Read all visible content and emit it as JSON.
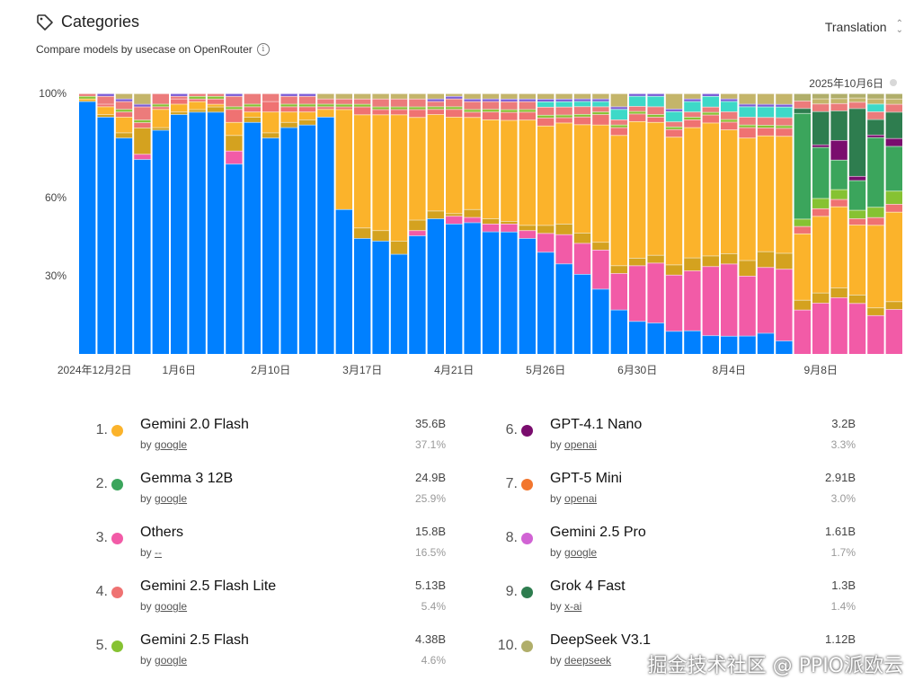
{
  "header": {
    "title": "Categories",
    "subtitle": "Compare models by usecase on OpenRouter",
    "icon": "tag-icon"
  },
  "selector": {
    "value": "Translation"
  },
  "current_date": "2025年10月6日",
  "chart_data": {
    "type": "bar",
    "stacked": true,
    "normalized": true,
    "y_ticks": [
      "100%",
      "60%",
      "30%"
    ],
    "y_tick_values": [
      100,
      60,
      30
    ],
    "x_tick_labels": [
      "2024年12月2日",
      "1月6日",
      "2月10日",
      "3月17日",
      "4月21日",
      "5月26日",
      "6月30日",
      "8月4日",
      "9月8日"
    ],
    "x_tick_bar_index": [
      0,
      5,
      10,
      15,
      20,
      25,
      30,
      35,
      40
    ],
    "bar_count": 45,
    "colors": {
      "gemini-2.0-flash": "#FBB32B",
      "gemma-3-12b": "#3BA55C",
      "others": "#F25BA7",
      "gemini-2.5-flash-lite": "#EF7272",
      "gemini-2.5-flash": "#86C232",
      "gpt-4.1-nano": "#7A0D6E",
      "gpt-5-mini": "#F2762E",
      "gemini-2.5-pro": "#D163D4",
      "grok-4-fast": "#2E7D4F",
      "deepseek-v3.1": "#B0AE6A",
      "blue": "#0080FF",
      "gold": "#D4A21F",
      "salmon": "#EC7B7B",
      "teal": "#3DD9C8",
      "khaki": "#C4B56A",
      "purple": "#7B5CD6"
    },
    "series": [
      {
        "key": "blue",
        "values": [
          97,
          91,
          83,
          74,
          86,
          92,
          92,
          92,
          73,
          89,
          83,
          87,
          88,
          91,
          55,
          44,
          43,
          38,
          45,
          52,
          50,
          50,
          47,
          46,
          44,
          38,
          34,
          31,
          25,
          17,
          13,
          12,
          9,
          9,
          7,
          7,
          7,
          8,
          5,
          0,
          0,
          0,
          0,
          0,
          0
        ]
      },
      {
        "key": "others",
        "values": [
          0,
          0,
          0,
          2,
          0,
          0,
          0,
          0,
          5,
          0,
          0,
          0,
          0,
          0,
          0,
          0,
          0,
          0,
          2,
          0,
          3,
          2,
          3,
          3,
          3,
          7,
          11,
          12,
          15,
          14,
          22,
          23,
          22,
          23,
          26,
          28,
          23,
          25,
          27,
          18,
          20,
          23,
          24,
          15,
          17
        ]
      },
      {
        "key": "gold",
        "values": [
          0,
          1,
          2,
          10,
          1,
          1,
          1,
          2,
          6,
          2,
          2,
          2,
          2,
          0,
          0,
          4,
          4,
          5,
          4,
          3,
          1,
          3,
          2,
          1,
          2,
          3,
          4,
          4,
          3,
          3,
          3,
          3,
          4,
          5,
          4,
          4,
          6,
          6,
          6,
          4,
          4,
          4,
          4,
          3,
          3
        ]
      },
      {
        "key": "gemini-2.0-flash",
        "values": [
          1,
          3,
          6,
          0,
          7,
          3,
          3,
          1,
          5,
          2,
          8,
          4,
          3,
          3,
          38,
          43,
          44,
          48,
          39,
          37,
          37,
          35,
          38,
          38,
          40,
          37,
          38,
          42,
          45,
          50,
          54,
          51,
          50,
          50,
          50,
          48,
          47,
          44,
          44,
          27,
          30,
          33,
          33,
          32,
          34
        ]
      },
      {
        "key": "gemini-2.5-flash-lite",
        "values": [
          0,
          1,
          2,
          2,
          1,
          2,
          1,
          2,
          5,
          2,
          4,
          2,
          2,
          1,
          1,
          3,
          2,
          2,
          3,
          2,
          3,
          2,
          3,
          3,
          3,
          3,
          2,
          3,
          4,
          3,
          3,
          2,
          3,
          3,
          3,
          3,
          4,
          3,
          3,
          3,
          3,
          3,
          3,
          3,
          3
        ]
      },
      {
        "key": "gemini-2.5-flash",
        "values": [
          1,
          0,
          1,
          1,
          1,
          0,
          1,
          1,
          1,
          1,
          0,
          1,
          1,
          1,
          1,
          1,
          1,
          1,
          1,
          1,
          1,
          1,
          1,
          1,
          1,
          1,
          1,
          1,
          1,
          1,
          1,
          1,
          1,
          1,
          1,
          1,
          1,
          1,
          1,
          3,
          4,
          4,
          4,
          4,
          5
        ]
      },
      {
        "key": "gemma-3-12b",
        "values": [
          0,
          0,
          0,
          0,
          0,
          0,
          0,
          0,
          0,
          0,
          0,
          0,
          0,
          0,
          0,
          0,
          0,
          0,
          0,
          0,
          0,
          0,
          0,
          0,
          0,
          0,
          0,
          0,
          0,
          0,
          0,
          0,
          0,
          0,
          0,
          0,
          0,
          0,
          0,
          43,
          20,
          12,
          14,
          27,
          17
        ]
      },
      {
        "key": "gpt-4.1-nano",
        "values": [
          0,
          0,
          0,
          0,
          0,
          0,
          0,
          0,
          0,
          0,
          0,
          0,
          0,
          0,
          0,
          0,
          0,
          0,
          0,
          0,
          0,
          0,
          0,
          0,
          0,
          0,
          0,
          0,
          0,
          0,
          0,
          0,
          0,
          0,
          0,
          0,
          0,
          0,
          0,
          0,
          1,
          8,
          2,
          1,
          3
        ]
      },
      {
        "key": "grok-4-fast",
        "values": [
          0,
          0,
          0,
          0,
          0,
          0,
          0,
          0,
          0,
          0,
          0,
          0,
          0,
          0,
          0,
          0,
          0,
          0,
          0,
          0,
          0,
          0,
          0,
          0,
          0,
          0,
          0,
          0,
          0,
          0,
          0,
          0,
          0,
          0,
          0,
          0,
          0,
          0,
          0,
          2,
          13,
          12,
          32,
          6,
          10
        ]
      },
      {
        "key": "salmon",
        "values": [
          1,
          3,
          3,
          5,
          4,
          1,
          1,
          1,
          4,
          4,
          3,
          3,
          3,
          2,
          2,
          2,
          3,
          3,
          3,
          2,
          3,
          3,
          3,
          3,
          3,
          3,
          3,
          3,
          2,
          2,
          2,
          3,
          2,
          2,
          2,
          3,
          3,
          3,
          3,
          3,
          3,
          3,
          3,
          3,
          3
        ]
      },
      {
        "key": "teal",
        "values": [
          0,
          0,
          0,
          0,
          0,
          0,
          0,
          0,
          0,
          0,
          0,
          0,
          0,
          0,
          0,
          0,
          0,
          0,
          0,
          0,
          0,
          0,
          0,
          0,
          0,
          2,
          2,
          2,
          2,
          4,
          4,
          4,
          4,
          4,
          4,
          4,
          4,
          4,
          4,
          0,
          0,
          0,
          0,
          3,
          0
        ]
      },
      {
        "key": "purple",
        "values": [
          0,
          1,
          1,
          1,
          0,
          1,
          0,
          0,
          1,
          0,
          0,
          1,
          1,
          0,
          0,
          0,
          0,
          0,
          0,
          1,
          1,
          1,
          1,
          1,
          1,
          1,
          1,
          1,
          1,
          1,
          1,
          1,
          1,
          1,
          1,
          1,
          1,
          1,
          1,
          0,
          0,
          0,
          0,
          0,
          0
        ]
      },
      {
        "key": "khaki",
        "values": [
          0,
          0,
          2,
          4,
          0,
          0,
          0,
          0,
          0,
          0,
          0,
          0,
          0,
          2,
          2,
          2,
          2,
          2,
          2,
          2,
          1,
          2,
          2,
          2,
          2,
          2,
          2,
          2,
          2,
          5,
          0,
          0,
          6,
          2,
          0,
          2,
          4,
          4,
          4,
          0,
          2,
          2,
          2,
          2,
          2
        ]
      },
      {
        "key": "deepseek-v3.1",
        "values": [
          0,
          0,
          0,
          0,
          0,
          0,
          0,
          0,
          0,
          0,
          0,
          0,
          0,
          0,
          0,
          0,
          0,
          0,
          0,
          0,
          0,
          0,
          0,
          0,
          0,
          0,
          0,
          0,
          0,
          0,
          0,
          0,
          0,
          0,
          0,
          0,
          0,
          0,
          0,
          3,
          2,
          2,
          2,
          2,
          2
        ]
      }
    ]
  },
  "legend": [
    {
      "rank": "1.",
      "name": "Gemini 2.0 Flash",
      "by": "by",
      "author": "google",
      "value": "35.6B",
      "pct": "37.1%",
      "color": "#FBB32B"
    },
    {
      "rank": "2.",
      "name": "Gemma 3 12B",
      "by": "by",
      "author": "google",
      "value": "24.9B",
      "pct": "25.9%",
      "color": "#3BA55C"
    },
    {
      "rank": "3.",
      "name": "Others",
      "by": "by",
      "author": "--",
      "value": "15.8B",
      "pct": "16.5%",
      "color": "#F25BA7"
    },
    {
      "rank": "4.",
      "name": "Gemini 2.5 Flash Lite",
      "by": "by",
      "author": "google",
      "value": "5.13B",
      "pct": "5.4%",
      "color": "#EF7272"
    },
    {
      "rank": "5.",
      "name": "Gemini 2.5 Flash",
      "by": "by",
      "author": "google",
      "value": "4.38B",
      "pct": "4.6%",
      "color": "#86C232"
    },
    {
      "rank": "6.",
      "name": "GPT-4.1 Nano",
      "by": "by",
      "author": "openai",
      "value": "3.2B",
      "pct": "3.3%",
      "color": "#7A0D6E"
    },
    {
      "rank": "7.",
      "name": "GPT-5 Mini",
      "by": "by",
      "author": "openai",
      "value": "2.91B",
      "pct": "3.0%",
      "color": "#F2762E"
    },
    {
      "rank": "8.",
      "name": "Gemini 2.5 Pro",
      "by": "by",
      "author": "google",
      "value": "1.61B",
      "pct": "1.7%",
      "color": "#D163D4"
    },
    {
      "rank": "9.",
      "name": "Grok 4 Fast",
      "by": "by",
      "author": "x-ai",
      "value": "1.3B",
      "pct": "1.4%",
      "color": "#2E7D4F"
    },
    {
      "rank": "10.",
      "name": "DeepSeek V3.1",
      "by": "by",
      "author": "deepseek",
      "value": "1.12B",
      "pct": "",
      "color": "#B0AE6A"
    }
  ],
  "watermark": "掘金技术社区 @ PPIO派欧云"
}
